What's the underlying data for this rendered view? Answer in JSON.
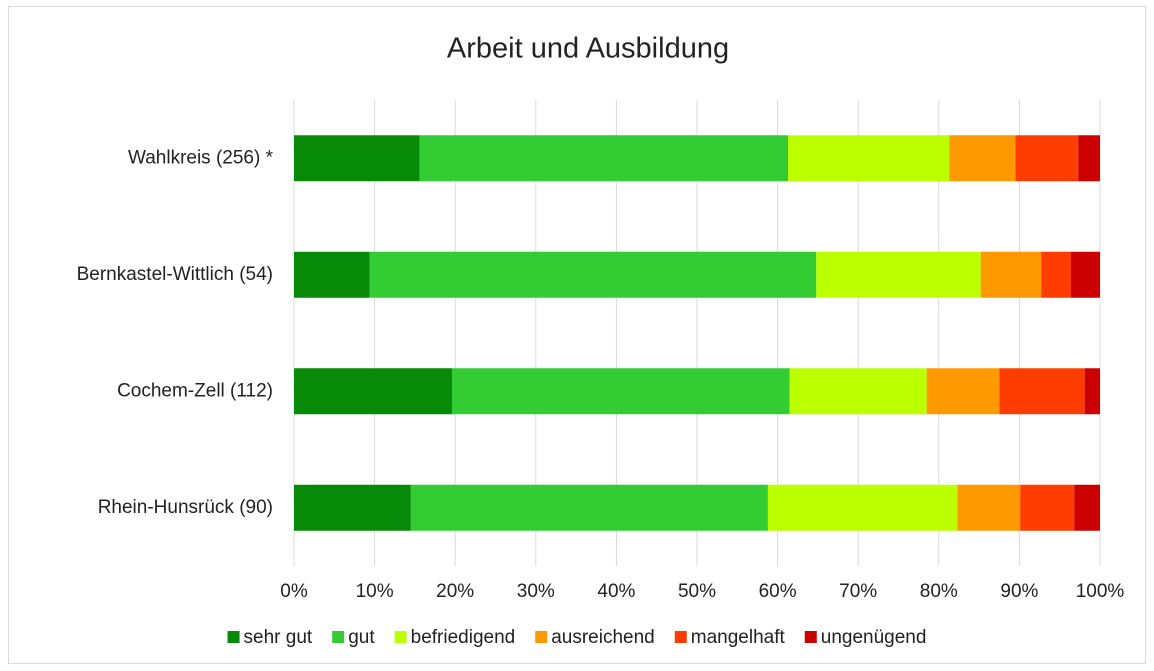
{
  "chart_data": {
    "type": "stacked_bar_horizontal",
    "title": "Arbeit und Ausbildung",
    "categories": [
      "Wahlkreis (256) *",
      "Bernkastel-Wittlich (54)",
      "Cochem-Zell (112)",
      "Rhein-Hunsrück (90)"
    ],
    "series": [
      {
        "name": "sehr gut",
        "color": "#078a07",
        "values": [
          15.6,
          9.4,
          19.6,
          14.5
        ]
      },
      {
        "name": "gut",
        "color": "#33cc33",
        "values": [
          45.7,
          55.4,
          41.9,
          44.3
        ]
      },
      {
        "name": "befriedigend",
        "color": "#bbff00",
        "values": [
          20.0,
          20.4,
          17.0,
          23.5
        ]
      },
      {
        "name": "ausreichend",
        "color": "#ff9900",
        "values": [
          8.2,
          7.5,
          9.0,
          7.8
        ]
      },
      {
        "name": "mangelhaft",
        "color": "#ff3d00",
        "values": [
          7.8,
          3.7,
          10.6,
          6.7
        ]
      },
      {
        "name": "ungenügend",
        "color": "#cc0000",
        "values": [
          2.7,
          3.6,
          1.9,
          3.2
        ]
      }
    ],
    "xlim": [
      0,
      100
    ],
    "xticks": [
      {
        "value": 0,
        "label": "0%"
      },
      {
        "value": 10,
        "label": "10%"
      },
      {
        "value": 20,
        "label": "20%"
      },
      {
        "value": 30,
        "label": "30%"
      },
      {
        "value": 40,
        "label": "40%"
      },
      {
        "value": 50,
        "label": "50%"
      },
      {
        "value": 60,
        "label": "60%"
      },
      {
        "value": 70,
        "label": "70%"
      },
      {
        "value": 80,
        "label": "80%"
      },
      {
        "value": 90,
        "label": "90%"
      },
      {
        "value": 100,
        "label": "100%"
      }
    ],
    "grid": true,
    "legend": "bottom"
  }
}
